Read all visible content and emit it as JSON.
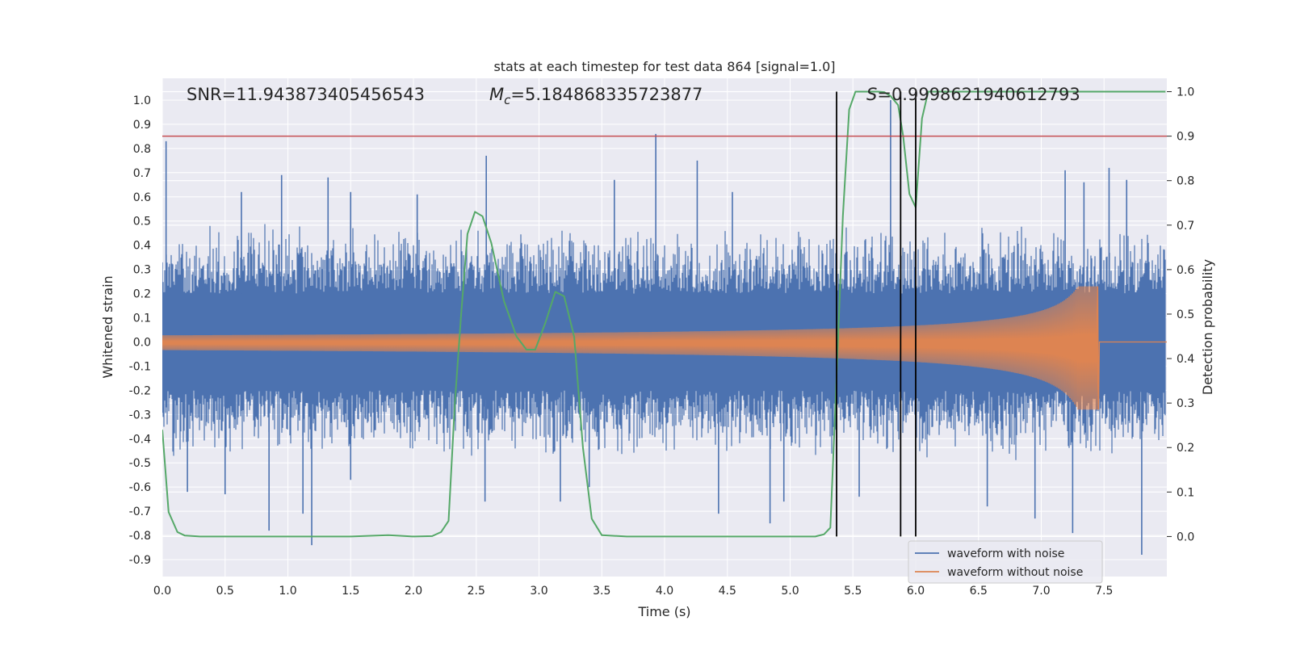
{
  "chart_data": {
    "type": "line",
    "title": "stats at each timestep for test data 864 [signal=1.0]",
    "xlabel": "Time (s)",
    "ylabel": "Whitened strain",
    "y2label": "Detection probability",
    "xlim": [
      0.0,
      8.0
    ],
    "ylim": [
      -0.97,
      1.09
    ],
    "y2lim": [
      -0.09,
      1.03
    ],
    "xticks": [
      "0.0",
      "0.5",
      "1.0",
      "1.5",
      "2.0",
      "2.5",
      "3.0",
      "3.5",
      "4.0",
      "4.5",
      "5.0",
      "5.5",
      "6.0",
      "6.5",
      "7.0",
      "7.5"
    ],
    "yticks": [
      "1.0",
      "0.9",
      "0.8",
      "0.7",
      "0.6",
      "0.5",
      "0.4",
      "0.3",
      "0.2",
      "0.1",
      "0.0",
      "-0.1",
      "-0.2",
      "-0.3",
      "-0.4",
      "-0.5",
      "-0.6",
      "-0.7",
      "-0.8",
      "-0.9"
    ],
    "y2ticks": [
      "1.0",
      "0.9",
      "0.8",
      "0.7",
      "0.6",
      "0.5",
      "0.4",
      "0.3",
      "0.2",
      "0.1",
      "0.0"
    ],
    "annotations": {
      "snr": "SNR=11.943873405456543",
      "mc_symbol": "M",
      "mc_sub": "c",
      "mc_value": "=5.184868335723877",
      "s_symbol": "S",
      "s_value": "=0.9998621940612793"
    },
    "threshold_line": {
      "axis": "right",
      "value": 0.9,
      "color": "#c44e52"
    },
    "vertical_lines": [
      5.37,
      5.88,
      6.0
    ],
    "legend": {
      "position": "lower-right",
      "entries": [
        {
          "label": "waveform with noise",
          "color": "#4c72b0"
        },
        {
          "label": "waveform without noise",
          "color": "#dd8452"
        }
      ]
    },
    "series": [
      {
        "name": "waveform with noise",
        "axis": "left",
        "color": "#4c72b0",
        "band": {
          "core_low": -0.2,
          "core_high": 0.2,
          "typical_low": -0.4,
          "typical_high": 0.4,
          "end_x": 7.99
        },
        "spikes": [
          [
            0.03,
            0.83
          ],
          [
            0.63,
            0.62
          ],
          [
            0.95,
            0.69
          ],
          [
            1.32,
            0.68
          ],
          [
            1.5,
            0.62
          ],
          [
            2.03,
            0.61
          ],
          [
            2.58,
            0.77
          ],
          [
            3.6,
            0.67
          ],
          [
            3.93,
            0.86
          ],
          [
            4.26,
            0.75
          ],
          [
            4.54,
            0.62
          ],
          [
            5.8,
            1.0
          ],
          [
            7.19,
            0.71
          ],
          [
            7.34,
            0.66
          ],
          [
            7.54,
            0.72
          ],
          [
            7.68,
            0.67
          ],
          [
            0.2,
            -0.62
          ],
          [
            0.5,
            -0.63
          ],
          [
            0.85,
            -0.78
          ],
          [
            1.19,
            -0.84
          ],
          [
            1.12,
            -0.71
          ],
          [
            2.57,
            -0.66
          ],
          [
            3.17,
            -0.66
          ],
          [
            4.43,
            -0.71
          ],
          [
            4.84,
            -0.75
          ],
          [
            4.95,
            -0.66
          ],
          [
            5.55,
            -0.64
          ],
          [
            6.57,
            -0.68
          ],
          [
            6.95,
            -0.73
          ],
          [
            7.25,
            -0.79
          ],
          [
            7.8,
            -0.88
          ],
          [
            1.5,
            -0.57
          ],
          [
            3.4,
            -0.6
          ]
        ]
      },
      {
        "name": "waveform without noise",
        "axis": "left",
        "color": "#dd8452",
        "chirp": {
          "start_amp": 0.03,
          "merger_x": 7.45,
          "peak_high": 0.23,
          "peak_low": -0.28,
          "post_merger": 0.0
        }
      },
      {
        "name": "detection probability",
        "axis": "right",
        "color": "#55a868",
        "x": [
          0.0,
          0.05,
          0.12,
          0.18,
          0.3,
          0.6,
          1.0,
          1.5,
          1.8,
          2.0,
          2.15,
          2.22,
          2.28,
          2.33,
          2.38,
          2.43,
          2.49,
          2.55,
          2.62,
          2.72,
          2.82,
          2.9,
          2.97,
          3.05,
          3.13,
          3.2,
          3.28,
          3.35,
          3.42,
          3.5,
          3.7,
          4.0,
          5.0,
          5.2,
          5.27,
          5.32,
          5.37,
          5.42,
          5.47,
          5.52,
          5.6,
          5.7,
          5.75,
          5.8,
          5.86,
          5.9,
          5.95,
          6.0,
          6.05,
          6.1,
          6.2,
          6.5,
          7.0,
          7.5,
          7.99
        ],
        "y": [
          0.24,
          0.055,
          0.01,
          0.002,
          0.0,
          0.0,
          0.0,
          0.0,
          0.003,
          0.0,
          0.001,
          0.01,
          0.035,
          0.3,
          0.5,
          0.68,
          0.73,
          0.72,
          0.66,
          0.53,
          0.45,
          0.42,
          0.42,
          0.48,
          0.55,
          0.54,
          0.45,
          0.2,
          0.04,
          0.003,
          0.0,
          0.0,
          0.0,
          0.0,
          0.005,
          0.02,
          0.36,
          0.72,
          0.96,
          1.0,
          1.0,
          1.0,
          0.999,
          0.99,
          0.97,
          0.9,
          0.77,
          0.74,
          0.94,
          1.0,
          1.0,
          1.0,
          1.0,
          1.0,
          1.0
        ]
      }
    ]
  }
}
